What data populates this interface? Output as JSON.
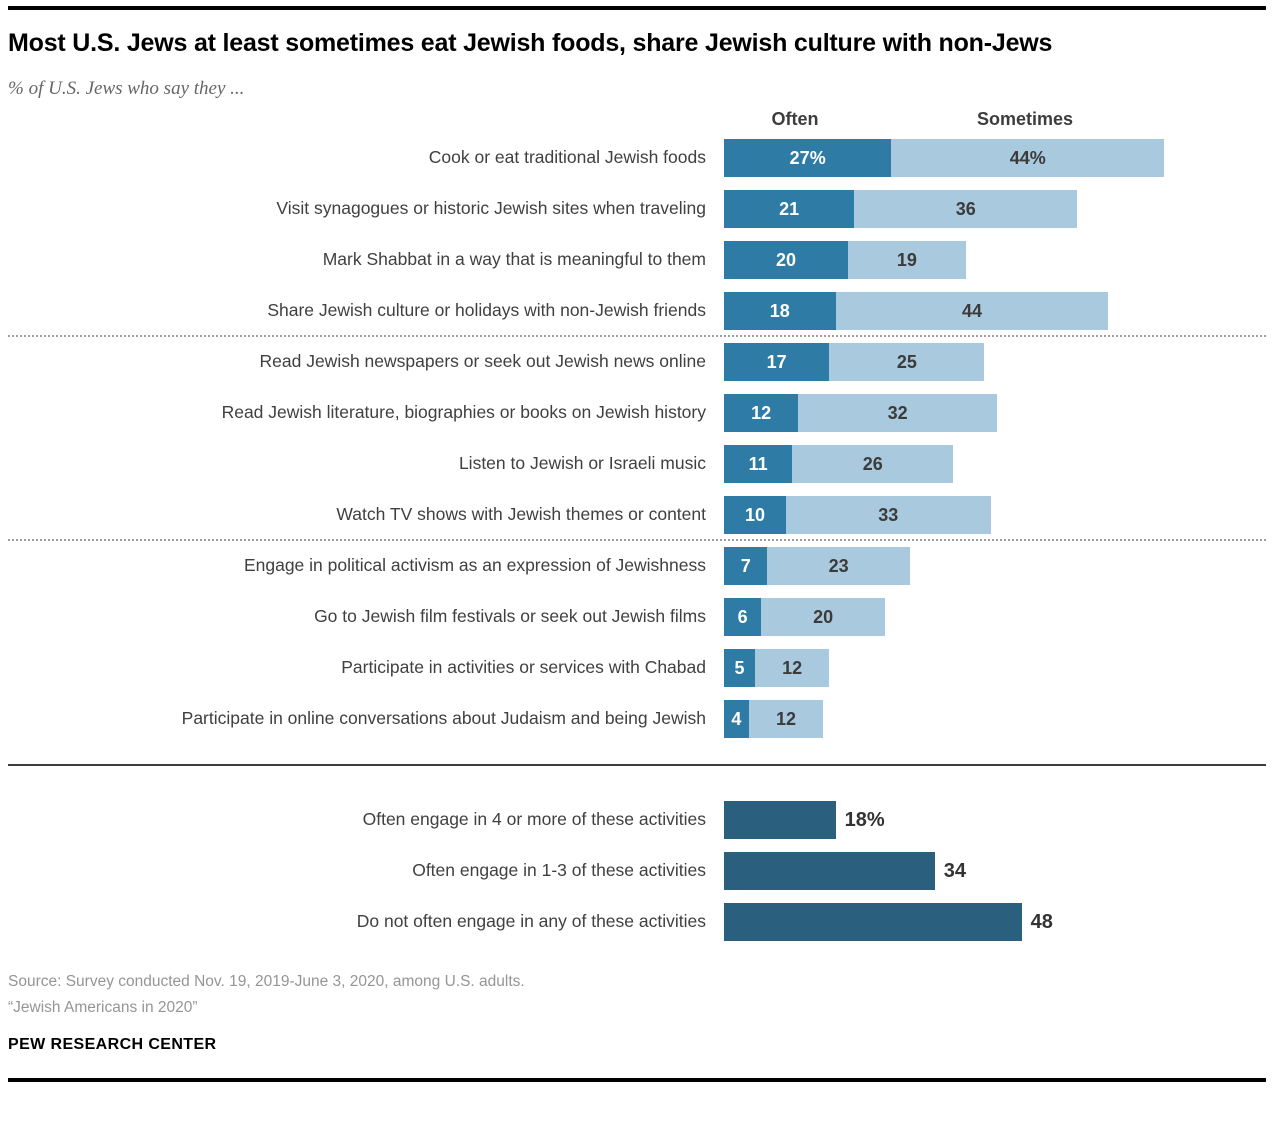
{
  "page": {
    "title": "Most U.S. Jews at least sometimes eat Jewish foods, share Jewish culture with non-Jews",
    "subtitle": "% of U.S. Jews who say they ..."
  },
  "colors": {
    "often": "#2E7BA6",
    "sometimes": "#A9C9DF",
    "summary": "#2B5F7E"
  },
  "chart_data": [
    {
      "type": "bar",
      "orientation": "horizontal",
      "stacked": true,
      "title": "Most U.S. Jews at least sometimes eat Jewish foods, share Jewish culture with non-Jews",
      "subtitle": "% of U.S. Jews who say they ...",
      "unit": "percent",
      "xlim": [
        0,
        75
      ],
      "grid": false,
      "legend_position": "top",
      "legend": {
        "often": "Often",
        "sometimes": "Sometimes"
      },
      "groups": [
        {
          "rows": [
            {
              "label": "Cook or eat traditional Jewish foods",
              "often": 27,
              "sometimes": 44,
              "often_text": "27%",
              "sometimes_text": "44%"
            },
            {
              "label": "Visit synagogues or historic Jewish sites when traveling",
              "often": 21,
              "sometimes": 36,
              "often_text": "21",
              "sometimes_text": "36"
            },
            {
              "label": "Mark Shabbat in a way that is meaningful to them",
              "often": 20,
              "sometimes": 19,
              "often_text": "20",
              "sometimes_text": "19"
            },
            {
              "label": "Share Jewish culture or holidays with non-Jewish friends",
              "often": 18,
              "sometimes": 44,
              "often_text": "18",
              "sometimes_text": "44"
            }
          ]
        },
        {
          "rows": [
            {
              "label": "Read Jewish newspapers or seek out Jewish news online",
              "often": 17,
              "sometimes": 25,
              "often_text": "17",
              "sometimes_text": "25"
            },
            {
              "label": "Read Jewish literature, biographies or books on Jewish history",
              "often": 12,
              "sometimes": 32,
              "often_text": "12",
              "sometimes_text": "32"
            },
            {
              "label": "Listen to Jewish or Israeli music",
              "often": 11,
              "sometimes": 26,
              "often_text": "11",
              "sometimes_text": "26"
            },
            {
              "label": "Watch TV shows with Jewish themes or content",
              "often": 10,
              "sometimes": 33,
              "often_text": "10",
              "sometimes_text": "33"
            }
          ]
        },
        {
          "rows": [
            {
              "label": "Engage in political activism as an expression of Jewishness",
              "often": 7,
              "sometimes": 23,
              "often_text": "7",
              "sometimes_text": "23"
            },
            {
              "label": "Go to Jewish film festivals or seek out Jewish films",
              "often": 6,
              "sometimes": 20,
              "often_text": "6",
              "sometimes_text": "20"
            },
            {
              "label": "Participate in activities or services with Chabad",
              "often": 5,
              "sometimes": 12,
              "often_text": "5",
              "sometimes_text": "12"
            },
            {
              "label": "Participate in online conversations about Judaism and being Jewish",
              "often": 4,
              "sometimes": 12,
              "often_text": "4",
              "sometimes_text": "12"
            }
          ]
        }
      ]
    },
    {
      "type": "bar",
      "orientation": "horizontal",
      "stacked": false,
      "unit": "percent",
      "xlim": [
        0,
        55
      ],
      "grid": false,
      "rows": [
        {
          "label": "Often engage in 4 or more of these activities",
          "value": 18,
          "text": "18%"
        },
        {
          "label": "Often engage in 1-3 of these activities",
          "value": 34,
          "text": "34"
        },
        {
          "label": "Do not often engage in any of these activities",
          "value": 48,
          "text": "48"
        }
      ]
    }
  ],
  "footer": {
    "source_line1": "Source: Survey conducted Nov. 19, 2019-June 3, 2020, among U.S. adults.",
    "source_line2": "“Jewish Americans in 2020”",
    "brand": "PEW RESEARCH CENTER"
  }
}
